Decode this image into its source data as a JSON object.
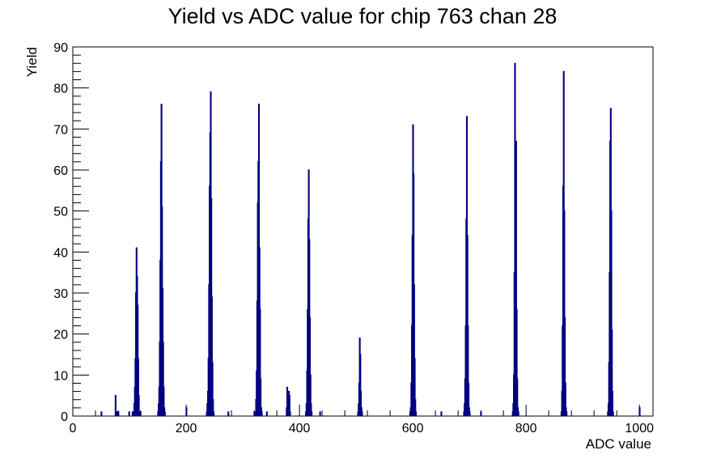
{
  "chart_data": {
    "type": "bar",
    "title": "Yield vs ADC value for chip 763 chan 28",
    "xlabel": "ADC value",
    "ylabel": "Yield",
    "xlim": [
      0,
      1024
    ],
    "ylim": [
      0,
      90
    ],
    "x_ticks": [
      0,
      200,
      400,
      600,
      800,
      1000
    ],
    "y_ticks": [
      0,
      10,
      20,
      30,
      40,
      50,
      60,
      70,
      80,
      90
    ],
    "grid": false,
    "line_color": "#000080",
    "bin_width": 1,
    "points": [
      [
        50,
        1
      ],
      [
        75,
        5
      ],
      [
        76,
        1
      ],
      [
        78,
        1
      ],
      [
        80,
        1
      ],
      [
        99,
        1
      ],
      [
        105,
        1
      ],
      [
        107,
        1
      ],
      [
        108,
        3
      ],
      [
        109,
        7
      ],
      [
        110,
        14
      ],
      [
        111,
        30
      ],
      [
        112,
        41
      ],
      [
        113,
        34
      ],
      [
        114,
        27
      ],
      [
        115,
        14
      ],
      [
        116,
        5
      ],
      [
        117,
        1
      ],
      [
        119,
        1
      ],
      [
        150,
        1
      ],
      [
        151,
        3
      ],
      [
        152,
        7
      ],
      [
        153,
        18
      ],
      [
        154,
        38
      ],
      [
        155,
        62
      ],
      [
        156,
        76
      ],
      [
        157,
        51
      ],
      [
        158,
        31
      ],
      [
        159,
        18
      ],
      [
        160,
        7
      ],
      [
        161,
        2
      ],
      [
        162,
        1
      ],
      [
        200,
        2
      ],
      [
        236,
        1
      ],
      [
        237,
        3
      ],
      [
        238,
        6
      ],
      [
        239,
        14
      ],
      [
        240,
        32
      ],
      [
        241,
        56
      ],
      [
        242,
        69
      ],
      [
        243,
        79
      ],
      [
        244,
        53
      ],
      [
        245,
        29
      ],
      [
        246,
        13
      ],
      [
        247,
        4
      ],
      [
        248,
        1
      ],
      [
        274,
        1
      ],
      [
        320,
        1
      ],
      [
        322,
        1
      ],
      [
        323,
        4
      ],
      [
        324,
        11
      ],
      [
        325,
        28
      ],
      [
        326,
        52
      ],
      [
        327,
        62
      ],
      [
        328,
        76
      ],
      [
        329,
        41
      ],
      [
        330,
        26
      ],
      [
        331,
        9
      ],
      [
        332,
        2
      ],
      [
        333,
        1
      ],
      [
        342,
        1
      ],
      [
        377,
        2
      ],
      [
        378,
        7
      ],
      [
        379,
        5
      ],
      [
        380,
        3
      ],
      [
        381,
        6
      ],
      [
        382,
        5
      ],
      [
        383,
        1
      ],
      [
        411,
        1
      ],
      [
        412,
        3
      ],
      [
        413,
        11
      ],
      [
        414,
        26
      ],
      [
        415,
        48
      ],
      [
        416,
        60
      ],
      [
        417,
        43
      ],
      [
        418,
        24
      ],
      [
        419,
        10
      ],
      [
        420,
        3
      ],
      [
        421,
        1
      ],
      [
        436,
        1
      ],
      [
        503,
        1
      ],
      [
        504,
        3
      ],
      [
        505,
        8
      ],
      [
        506,
        19
      ],
      [
        507,
        15
      ],
      [
        508,
        6
      ],
      [
        509,
        2
      ],
      [
        510,
        1
      ],
      [
        595,
        1
      ],
      [
        596,
        2
      ],
      [
        597,
        8
      ],
      [
        598,
        22
      ],
      [
        599,
        44
      ],
      [
        600,
        71
      ],
      [
        601,
        59
      ],
      [
        602,
        32
      ],
      [
        603,
        14
      ],
      [
        604,
        4
      ],
      [
        605,
        1
      ],
      [
        650,
        1
      ],
      [
        690,
        1
      ],
      [
        691,
        3
      ],
      [
        692,
        9
      ],
      [
        693,
        22
      ],
      [
        694,
        48
      ],
      [
        695,
        73
      ],
      [
        696,
        44
      ],
      [
        697,
        22
      ],
      [
        698,
        8
      ],
      [
        699,
        2
      ],
      [
        700,
        1
      ],
      [
        720,
        1
      ],
      [
        776,
        1
      ],
      [
        777,
        3
      ],
      [
        778,
        10
      ],
      [
        779,
        35
      ],
      [
        780,
        86
      ],
      [
        781,
        28
      ],
      [
        782,
        67
      ],
      [
        783,
        26
      ],
      [
        784,
        9
      ],
      [
        785,
        2
      ],
      [
        786,
        1
      ],
      [
        862,
        1
      ],
      [
        863,
        6
      ],
      [
        864,
        22
      ],
      [
        865,
        56
      ],
      [
        866,
        84
      ],
      [
        867,
        50
      ],
      [
        868,
        24
      ],
      [
        869,
        8
      ],
      [
        870,
        2
      ],
      [
        871,
        1
      ],
      [
        944,
        1
      ],
      [
        945,
        3
      ],
      [
        946,
        13
      ],
      [
        947,
        35
      ],
      [
        948,
        67
      ],
      [
        949,
        75
      ],
      [
        950,
        50
      ],
      [
        951,
        21
      ],
      [
        952,
        6
      ],
      [
        953,
        1
      ],
      [
        1000,
        2
      ]
    ]
  }
}
